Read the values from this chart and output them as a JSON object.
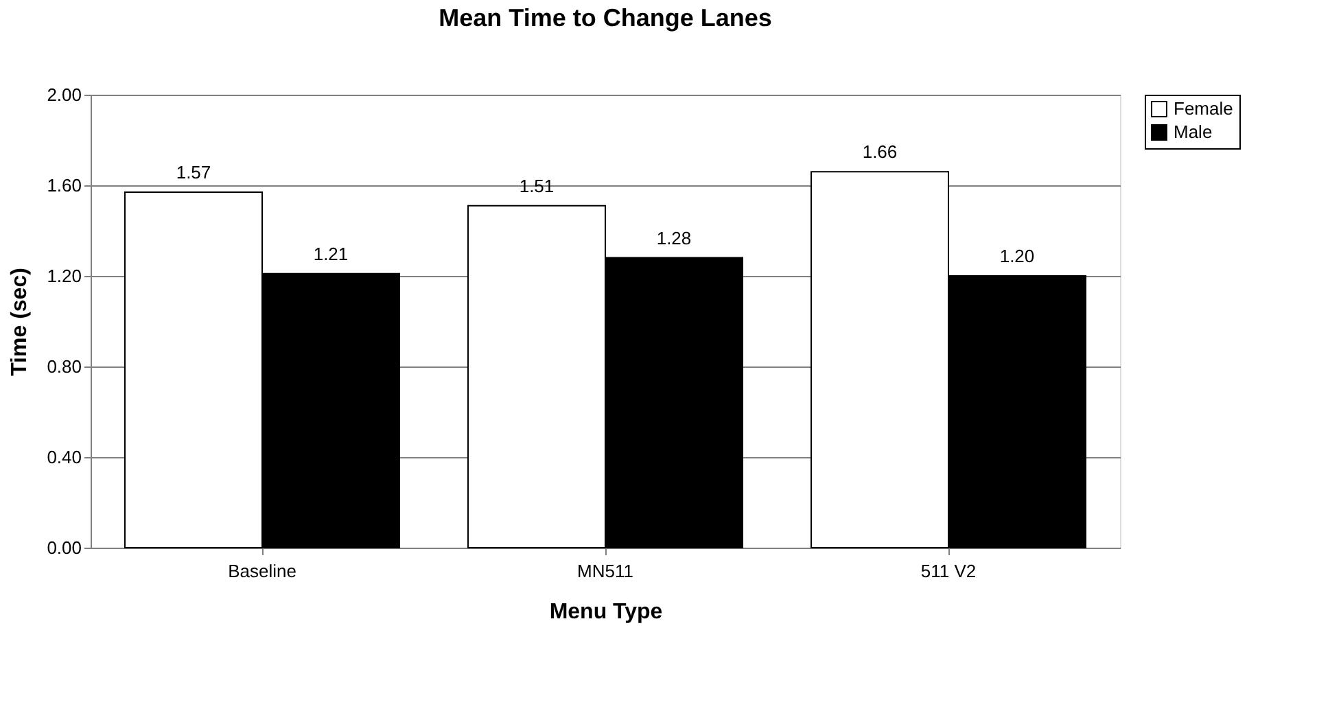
{
  "chart_data": {
    "type": "bar",
    "title": "Mean Time to Change Lanes",
    "xlabel": "Menu Type",
    "ylabel": "Time (sec)",
    "categories": [
      "Baseline",
      "MN511",
      "511 V2"
    ],
    "series": [
      {
        "name": "Female",
        "color": "#ffffff",
        "values": [
          1.57,
          1.51,
          1.66
        ],
        "value_labels": [
          "1.57",
          "1.51",
          "1.66"
        ]
      },
      {
        "name": "Male",
        "color": "#000000",
        "values": [
          1.21,
          1.28,
          1.2
        ],
        "value_labels": [
          "1.21",
          "1.28",
          "1.20"
        ]
      }
    ],
    "ylim": [
      0,
      2
    ],
    "yticks": [
      {
        "value": 0,
        "label": "0.00"
      },
      {
        "value": 0.4,
        "label": "0.40"
      },
      {
        "value": 0.8,
        "label": "0.80"
      },
      {
        "value": 1.2,
        "label": "1.20"
      },
      {
        "value": 1.6,
        "label": "1.60"
      },
      {
        "value": 2,
        "label": "2.00"
      }
    ],
    "grid": "y",
    "legend": "right"
  }
}
